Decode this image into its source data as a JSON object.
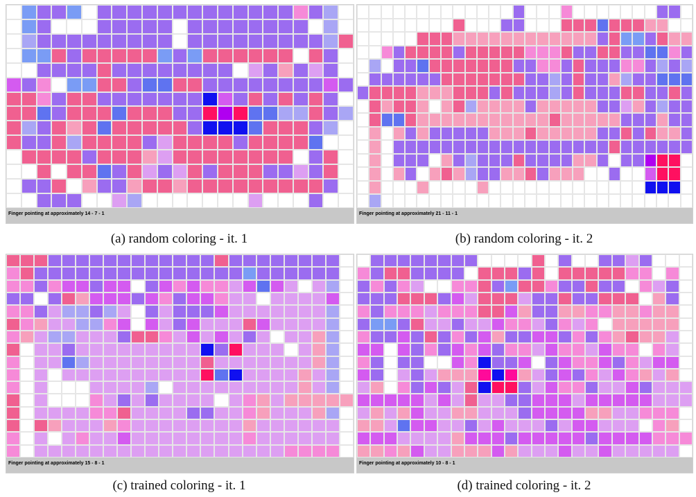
{
  "palette": {
    "w": "#ffffff",
    "p": "#f06090",
    "k": "#f7a0bc",
    "v": "#9b6cf0",
    "l": "#dd9ff2",
    "m": "#d45bf0",
    "b": "#5f73f0",
    "s": "#7a9cf5",
    "c": "#a9a6f5",
    "B": "#1010f0",
    "M": "#ff0a9a",
    "R": "#ff1060",
    "P": "#b000f0",
    "h": "#f68ad8"
  },
  "panels": [
    {
      "id": "a",
      "status": "Finger pointing at approximately 14 - 7 - 1",
      "caption": "(a) random coloring - it. 1",
      "rows": [
        "wsvvswvvvvvvvvvvvvvhvcw",
        "wsvwwwvvvvvwvvvvvvvvwcw",
        "wcvvvvvvvvvwvvvvvvvvvcp",
        "wsspvpppppsvsppppppwpvw",
        "wwvvvvpvvvvvvvvwlvkvlvw",
        "mvhwssppvbbppvvvvvvvvmv",
        "pphvppvvvvvvvBmvpvpvpvw",
        "ppbvpppbpppvvRPRbbccpvc",
        "pcvpkpbpppppvBBBbpppvcw",
        "pvvpcppppvlppppvppppbww",
        "wppppvpppklppppppppwvpw",
        "wwpwppbvplvlpvpppvvlvpw",
        "wvvpwkvvkppkpppppppppvw",
        "wwvvvwwlcwwwwwwwlwwwvww"
      ]
    },
    {
      "id": "b",
      "status": "Finger pointing at approximately 21 - 11 - 1",
      "caption": "(b) random coloring - it. 2",
      "rows": [
        "wwwwwwwwwwwwwvwwwhwwwwwwwvvw",
        "wwwwwwwwpwwwvvwwwpppbpppkkww",
        "wwwwwpppkkkkkkkkkkkkvpssvpkk",
        "wwhvppppvppppphhhpvvppvvbbhv",
        "wcwvvbpppppppvvhhvpvvvhhvcvc",
        "wvvvvvvpppppppvvcvpvvkcvvbbb",
        "vppppkkkpppvpvvvcvpvvvppvvpv",
        "wpkppkwkpckkkkvkkkkkvvlkvcvv",
        "wpbbpkkkkkkkkkkkpkkkkkvvvkvv",
        "wkwkvkvvvvvkkkpkkkkkvvpvpkkv",
        "wkwvvvvvvvvvvvvvvvvvvpvvvvvv",
        "wkwvvvwkvcvvvpvvvvkkvwvvPRRw",
        "wkwkvwkpkcvvkkpvkkkwwvwwmRRw",
        "wkwwwkwwwwkwwwwwwwwwwwwwBBBw",
        "wcwwwwwwwwwwwwwwwwwwwwwwwwww"
      ]
    },
    {
      "id": "c",
      "status": "Finger pointing at approximately 15 - 8 - 1",
      "caption": "(c) trained coloring - it. 1",
      "rows": [
        "pppvvvvvvvvvvvvpvvvvvvvvw",
        "hpvvvvvvvvvvvvvvvsvvvvvvw",
        "hhvhmmvmmwvmhmhhlmbmlwlcw",
        "vvwvpkmmmvmhvmmhllwllllmw",
        "hhvlccvclwvlvvvmlllllllcw",
        "phkllcchmwmlvmlllpmllllcw",
        "hklcclllvpphlmlmlvlwllkcw",
        "pwllvlllllllllBvRlllwlkcw",
        "hwllbcllllllllplllllllkcw",
        "hwlwllllllllllRbBllllklcw",
        "hwlwwwllllcwlllllllllklcw",
        "pwlwwwhlvlvllllwlhklkkkkk",
        "pwllllhhpllllvvllhklllkcw",
        "pwpklllkhllllllllkllllllw",
        "hwlwlhllmllllllllhllllllw",
        "hwllllllllllllllllllhhhhw"
      ]
    },
    {
      "id": "d",
      "status": "Finger pointing at approximately 10 - 8 - 1",
      "caption": "(d) trained coloring - it. 2",
      "rows": [
        "wvvvvvvvvwwwwpwvwwvvlvwww",
        "hvppvvvvwpppvpwppppphhwhw",
        "vhvhlwwhhpvspphvvpvvwhlvw",
        "vvvpppvmlppplvvpvvpppwkvw",
        "hvhhhlhhhppmkvvkkhhkkhkkw",
        "vssvpllvllmhhlvhlhwkkkkkw",
        "hvvmvpvhvmkvvmmvhvhkpkklw",
        "mmwmvhvmhmvhhlmhhlmhhwhlw",
        "hvwvvwwmhBvvmwvmhhmvhlmmw",
        "mvwlvlkkkMBMklvmvhlmhklkw",
        "lkwhvmvlpBRRvlmhhvllmvlll",
        "mmmmmlmlpllvvmmmlmmmmmlll",
        "lklkmllkklllvmmmmkkllhhhw",
        "kklbmmllvlmlllvlmmlllwhkw",
        "mmmllllkmmmvmmmmmvmmmmhhh",
        "kkhkmllkkkmklllmllmlllllw"
      ]
    }
  ]
}
